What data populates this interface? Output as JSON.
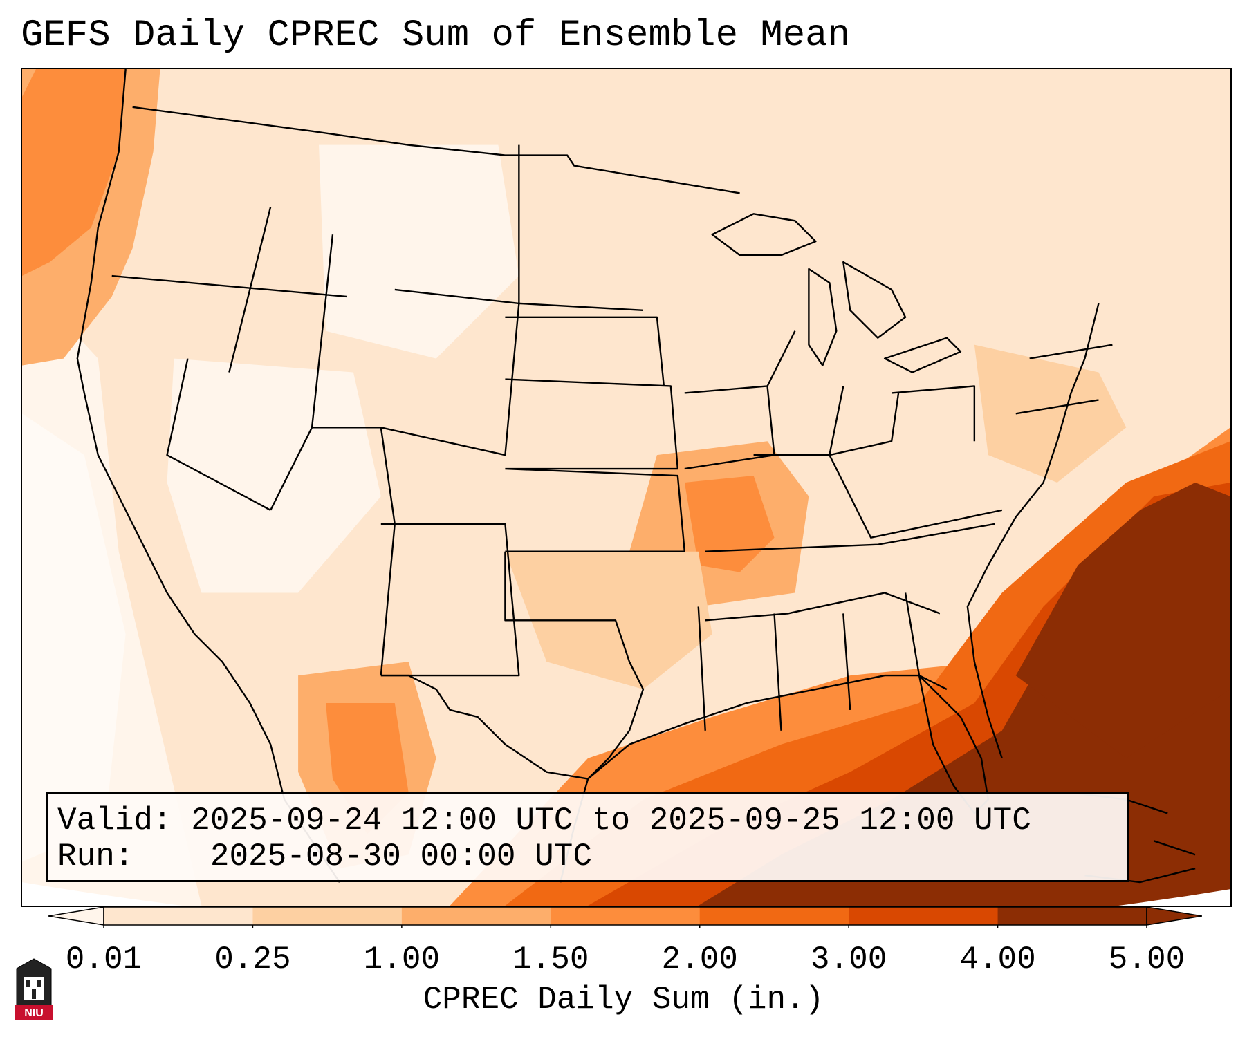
{
  "title": "GEFS Daily CPREC Sum of Ensemble Mean",
  "info": {
    "valid_label": "Valid:",
    "valid_value": "2025-09-24 12:00 UTC to 2025-09-25 12:00 UTC",
    "run_label": "Run:",
    "run_value": "2025-08-30 00:00 UTC"
  },
  "colorbar": {
    "label": "CPREC Daily Sum (in.)",
    "ticks": [
      "0.01",
      "0.25",
      "1.00",
      "1.50",
      "2.00",
      "3.00",
      "4.00",
      "5.00"
    ],
    "colors": [
      "#fff5eb",
      "#fee6ce",
      "#fdd0a2",
      "#fdae6b",
      "#fd8d3c",
      "#f16913",
      "#d94801",
      "#8c2d04"
    ]
  },
  "logo": {
    "text": "NIU",
    "color": "#c8102e"
  }
}
